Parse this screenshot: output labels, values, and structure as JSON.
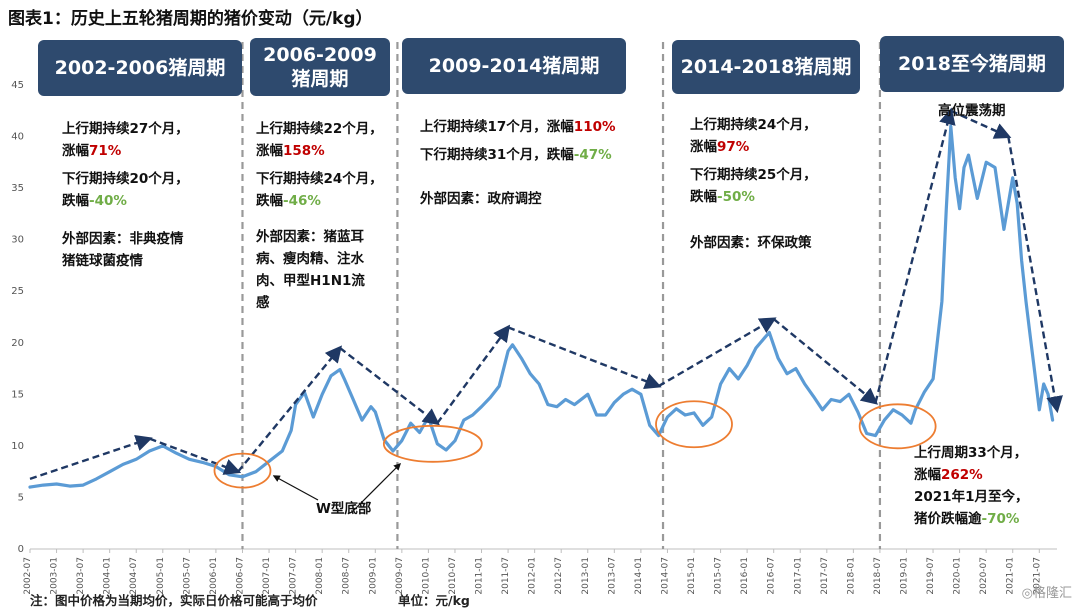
{
  "title": "图表1：历史上五轮猪周期的猪价变动（元/kg）",
  "cycles": [
    {
      "label": "2002-2006猪周期"
    },
    {
      "label": "2006-2009\n猪周期"
    },
    {
      "label": "2009-2014猪周期"
    },
    {
      "label": "2014-2018猪周期"
    },
    {
      "label": "2018至今猪周期"
    }
  ],
  "notes": {
    "c1_up": "上行期持续27个月，",
    "c1_up_pct_prefix": "涨幅",
    "c1_up_pct": "71%",
    "c1_down": "下行期持续20个月，",
    "c1_down_pct_prefix": "跌幅",
    "c1_down_pct": "-40%",
    "c1_ext1": "外部因素：非典疫情",
    "c1_ext2": "猪链球菌疫情",
    "c2_up": "上行期持续22个月，",
    "c2_up_pct_prefix": "涨幅",
    "c2_up_pct": "158%",
    "c2_down": "下行期持续24个月，",
    "c2_down_pct_prefix": "跌幅",
    "c2_down_pct": "-46%",
    "c2_ext1": "外部因素：猪蓝耳",
    "c2_ext2": "病、瘦肉精、注水",
    "c2_ext3": "肉、甲型H1N1流",
    "c2_ext4": "感",
    "c3_up_prefix": "上行期持续17个月，涨幅",
    "c3_up_pct": "110%",
    "c3_down_prefix": "下行期持续31个月，跌幅",
    "c3_down_pct": "-47%",
    "c3_ext": "外部因素：政府调控",
    "c4_up": "上行期持续24个月，",
    "c4_up_pct_prefix": "涨幅",
    "c4_up_pct": "97%",
    "c4_down": "下行期持续25个月，",
    "c4_down_pct_prefix": "跌幅",
    "c4_down_pct": "-50%",
    "c4_ext": "外部因素：环保政策",
    "c5_peak": "高位震荡期",
    "c5_up": "上行周期33个月，",
    "c5_up_pct_prefix": "涨幅",
    "c5_up_pct": "262%",
    "c5_since": "2021年1月至今，",
    "c5_down_prefix": "猪价跌幅逾",
    "c5_down_pct": "-70%",
    "w_label": "W型底部"
  },
  "footer": {
    "note": "注：图中价格为当期均价，实际日价格可能高于均价",
    "unit": "单位：元/kg"
  },
  "watermark": "格隆汇",
  "colors": {
    "line": "#5b9bd5",
    "box": "#2e4a6e",
    "trend": "#1f3864",
    "ellipse": "#ed7d31",
    "divider": "#999999",
    "up": "#c00000",
    "down": "#70ad47"
  },
  "chart_data": {
    "type": "line",
    "ylim": [
      0,
      45
    ],
    "yticks": [
      0,
      5,
      10,
      15,
      20,
      25,
      30,
      35,
      40,
      45
    ],
    "xticks": [
      "2002-07",
      "2003-01",
      "2003-07",
      "2004-01",
      "2004-07",
      "2005-01",
      "2005-07",
      "2006-01",
      "2006-07",
      "2007-01",
      "2007-07",
      "2008-01",
      "2008-07",
      "2009-01",
      "2009-07",
      "2010-01",
      "2010-07",
      "2011-01",
      "2011-07",
      "2012-01",
      "2012-07",
      "2013-01",
      "2013-07",
      "2014-01",
      "2014-07",
      "2015-01",
      "2015-07",
      "2016-01",
      "2016-07",
      "2017-01",
      "2017-07",
      "2018-01",
      "2018-07",
      "2019-01",
      "2019-07",
      "2020-01",
      "2020-07",
      "2021-01",
      "2021-07"
    ],
    "series": [
      {
        "points": [
          [
            "2002-07",
            6.0
          ],
          [
            "2002-10",
            6.2
          ],
          [
            "2003-01",
            6.3
          ],
          [
            "2003-04",
            6.1
          ],
          [
            "2003-07",
            6.2
          ],
          [
            "2003-10",
            6.8
          ],
          [
            "2004-01",
            7.5
          ],
          [
            "2004-04",
            8.2
          ],
          [
            "2004-07",
            8.7
          ],
          [
            "2004-10",
            9.5
          ],
          [
            "2005-01",
            10.0
          ],
          [
            "2005-04",
            9.3
          ],
          [
            "2005-07",
            8.7
          ],
          [
            "2005-10",
            8.4
          ],
          [
            "2006-01",
            8.0
          ],
          [
            "2006-04",
            7.2
          ],
          [
            "2006-07",
            7.0
          ],
          [
            "2006-10",
            7.5
          ],
          [
            "2007-01",
            8.5
          ],
          [
            "2007-04",
            9.5
          ],
          [
            "2007-06",
            11.5
          ],
          [
            "2007-07",
            14.0
          ],
          [
            "2007-09",
            15.2
          ],
          [
            "2007-11",
            12.8
          ],
          [
            "2008-01",
            15.0
          ],
          [
            "2008-03",
            16.8
          ],
          [
            "2008-05",
            17.4
          ],
          [
            "2008-06",
            16.5
          ],
          [
            "2008-08",
            14.5
          ],
          [
            "2008-10",
            12.5
          ],
          [
            "2008-12",
            13.8
          ],
          [
            "2009-01",
            13.3
          ],
          [
            "2009-03",
            10.6
          ],
          [
            "2009-05",
            9.5
          ],
          [
            "2009-07",
            10.5
          ],
          [
            "2009-09",
            12.2
          ],
          [
            "2009-11",
            11.3
          ],
          [
            "2010-01",
            12.8
          ],
          [
            "2010-03",
            10.2
          ],
          [
            "2010-05",
            9.6
          ],
          [
            "2010-07",
            10.5
          ],
          [
            "2010-09",
            12.5
          ],
          [
            "2010-11",
            13.0
          ],
          [
            "2011-01",
            13.8
          ],
          [
            "2011-03",
            14.7
          ],
          [
            "2011-05",
            15.8
          ],
          [
            "2011-07",
            19.2
          ],
          [
            "2011-08",
            19.8
          ],
          [
            "2011-10",
            18.5
          ],
          [
            "2011-12",
            17.0
          ],
          [
            "2012-02",
            16.0
          ],
          [
            "2012-04",
            14.0
          ],
          [
            "2012-06",
            13.8
          ],
          [
            "2012-08",
            14.5
          ],
          [
            "2012-10",
            14.0
          ],
          [
            "2013-01",
            15.0
          ],
          [
            "2013-03",
            13.0
          ],
          [
            "2013-05",
            13.0
          ],
          [
            "2013-07",
            14.2
          ],
          [
            "2013-09",
            15.0
          ],
          [
            "2013-11",
            15.5
          ],
          [
            "2014-01",
            15.0
          ],
          [
            "2014-03",
            12.0
          ],
          [
            "2014-05",
            11.0
          ],
          [
            "2014-07",
            12.8
          ],
          [
            "2014-09",
            13.6
          ],
          [
            "2014-11",
            13.0
          ],
          [
            "2015-01",
            13.2
          ],
          [
            "2015-03",
            12.0
          ],
          [
            "2015-05",
            12.8
          ],
          [
            "2015-07",
            16.0
          ],
          [
            "2015-09",
            17.5
          ],
          [
            "2015-11",
            16.5
          ],
          [
            "2016-01",
            17.8
          ],
          [
            "2016-03",
            19.5
          ],
          [
            "2016-05",
            20.5
          ],
          [
            "2016-06",
            21.0
          ],
          [
            "2016-08",
            18.5
          ],
          [
            "2016-10",
            17.0
          ],
          [
            "2016-12",
            17.5
          ],
          [
            "2017-02",
            16.0
          ],
          [
            "2017-04",
            14.8
          ],
          [
            "2017-06",
            13.5
          ],
          [
            "2017-08",
            14.5
          ],
          [
            "2017-10",
            14.3
          ],
          [
            "2017-12",
            15.0
          ],
          [
            "2018-02",
            13.3
          ],
          [
            "2018-04",
            11.2
          ],
          [
            "2018-06",
            11.0
          ],
          [
            "2018-08",
            12.5
          ],
          [
            "2018-10",
            13.5
          ],
          [
            "2018-12",
            13.0
          ],
          [
            "2019-02",
            12.2
          ],
          [
            "2019-03",
            13.5
          ],
          [
            "2019-05",
            15.2
          ],
          [
            "2019-07",
            16.5
          ],
          [
            "2019-09",
            24.0
          ],
          [
            "2019-10",
            33.0
          ],
          [
            "2019-11",
            41.0
          ],
          [
            "2019-12",
            36.0
          ],
          [
            "2020-01",
            33.0
          ],
          [
            "2020-02",
            37.0
          ],
          [
            "2020-03",
            38.2
          ],
          [
            "2020-05",
            34.0
          ],
          [
            "2020-07",
            37.5
          ],
          [
            "2020-09",
            37.0
          ],
          [
            "2020-11",
            31.0
          ],
          [
            "2021-01",
            36.0
          ],
          [
            "2021-02",
            33.5
          ],
          [
            "2021-03",
            28.0
          ],
          [
            "2021-04",
            24.0
          ],
          [
            "2021-05",
            20.5
          ],
          [
            "2021-06",
            17.0
          ],
          [
            "2021-07",
            13.5
          ],
          [
            "2021-08",
            16.0
          ],
          [
            "2021-09",
            15.0
          ],
          [
            "2021-10",
            12.5
          ]
        ]
      }
    ]
  }
}
